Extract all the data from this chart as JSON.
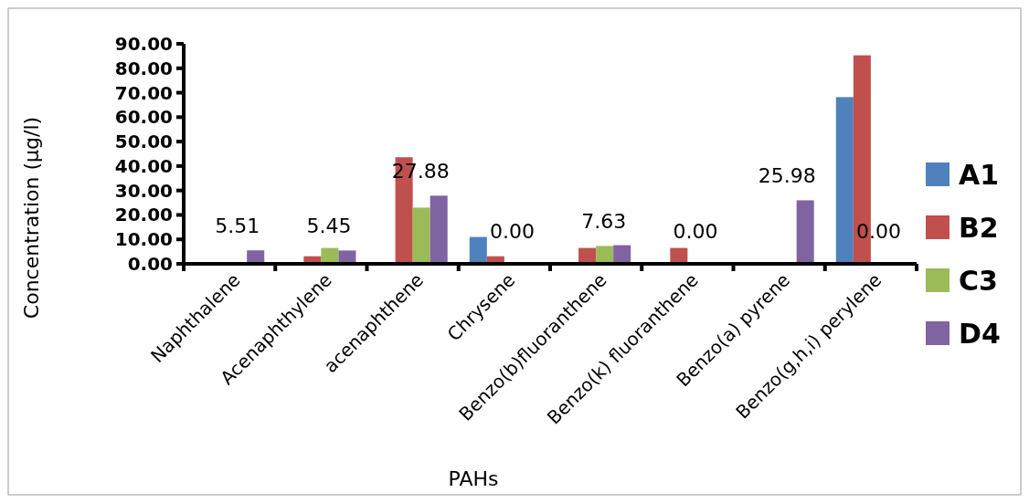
{
  "chart_data": {
    "type": "bar",
    "xlabel": "PAHs",
    "ylabel": "Concentration (µg/l)",
    "categories": [
      "Naphthalene",
      "Acenaphthylene",
      "acenaphthene",
      "Chrysene",
      "Benzo(b)fluoranthene",
      "Benzo(k) fluoranthene",
      "Benzo(a) pyrene",
      "Benzo(g,h,i) perylene"
    ],
    "series": [
      {
        "name": "A1",
        "color": "#4f81bd",
        "values": [
          0,
          0,
          0,
          11.0,
          0,
          0,
          0,
          68.2
        ]
      },
      {
        "name": "B2",
        "color": "#c0504d",
        "values": [
          0,
          3.1,
          43.6,
          3.1,
          6.5,
          6.5,
          0,
          85.3
        ]
      },
      {
        "name": "C3",
        "color": "#9bbb59",
        "values": [
          0,
          6.5,
          23.0,
          0,
          7.3,
          0,
          0,
          0
        ]
      },
      {
        "name": "D4",
        "color": "#8064a2",
        "values": [
          5.51,
          5.45,
          27.88,
          0,
          7.63,
          0,
          25.98,
          0
        ],
        "value_labels": [
          "5.51",
          "5.45",
          "27.88",
          "0.00",
          "7.63",
          "0.00",
          "25.98",
          "0.00"
        ]
      }
    ],
    "ylim": [
      0,
      90
    ],
    "yticks": [
      {
        "value": 0,
        "label": "0.00"
      },
      {
        "value": 10,
        "label": "10.00"
      },
      {
        "value": 20,
        "label": "20.00"
      },
      {
        "value": 30,
        "label": "30.00"
      },
      {
        "value": 40,
        "label": "40.00"
      },
      {
        "value": 50,
        "label": "50.00"
      },
      {
        "value": 60,
        "label": "60.00"
      },
      {
        "value": 70,
        "label": "70.00"
      },
      {
        "value": 80,
        "label": "80.00"
      },
      {
        "value": 90,
        "label": "90.00"
      }
    ],
    "grid": false,
    "legend": "right"
  }
}
